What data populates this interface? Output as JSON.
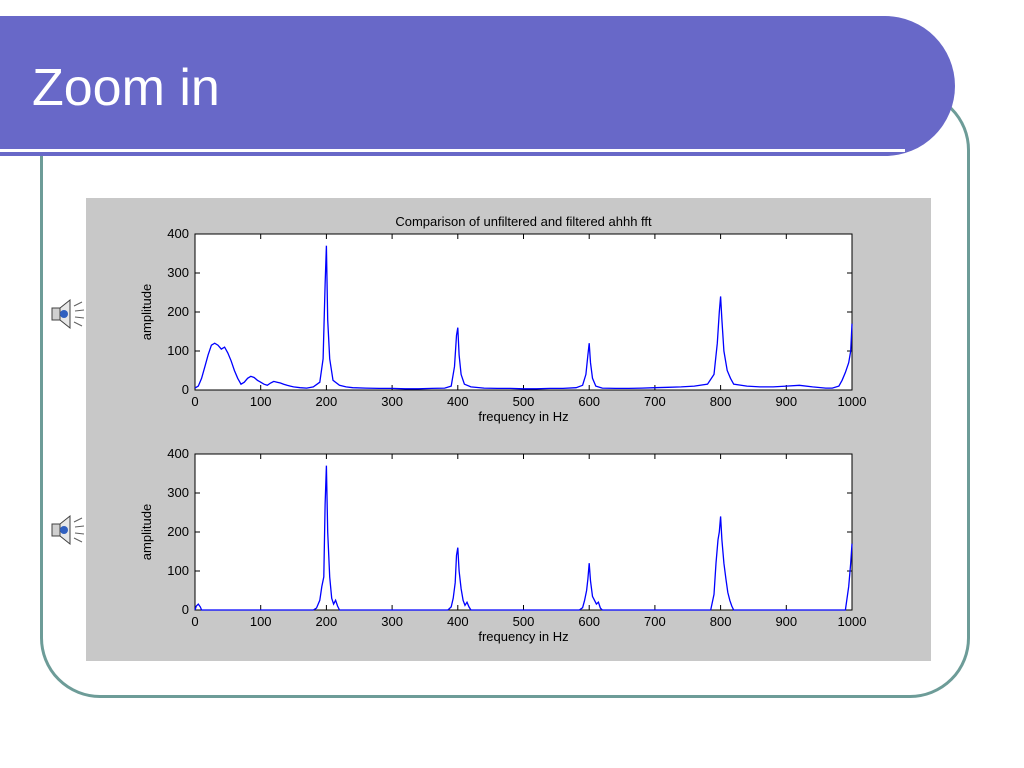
{
  "slide": {
    "title": "Zoom in"
  },
  "icons": {
    "speaker1": "speaker-icon",
    "speaker2": "speaker-icon"
  },
  "colors": {
    "title_bar": "#6868c8",
    "frame": "#6d9c98",
    "series": "#0000ff",
    "figure_bg": "#c8c8c8"
  },
  "chart_data": [
    {
      "type": "line",
      "title": "Comparison of unfiltered and filtered ahhh fft",
      "xlabel": "frequency in Hz",
      "ylabel": "amplitude",
      "xlim": [
        0,
        1000
      ],
      "ylim": [
        0,
        400
      ],
      "xticks": [
        0,
        100,
        200,
        300,
        400,
        500,
        600,
        700,
        800,
        900,
        1000
      ],
      "yticks": [
        0,
        100,
        200,
        300,
        400
      ],
      "grid": false,
      "x": [
        0,
        5,
        10,
        15,
        20,
        25,
        30,
        35,
        40,
        45,
        50,
        55,
        60,
        65,
        70,
        75,
        80,
        85,
        90,
        95,
        100,
        105,
        110,
        115,
        120,
        125,
        130,
        135,
        140,
        145,
        150,
        160,
        170,
        180,
        190,
        195,
        198,
        200,
        202,
        205,
        210,
        220,
        230,
        240,
        260,
        280,
        300,
        320,
        340,
        360,
        380,
        390,
        395,
        398,
        400,
        402,
        405,
        410,
        420,
        440,
        460,
        480,
        500,
        520,
        540,
        560,
        580,
        590,
        595,
        598,
        600,
        602,
        605,
        610,
        620,
        640,
        660,
        680,
        700,
        720,
        740,
        760,
        780,
        790,
        795,
        798,
        800,
        802,
        805,
        810,
        815,
        820,
        840,
        860,
        880,
        900,
        920,
        940,
        960,
        970,
        980,
        985,
        990,
        995,
        998,
        1000
      ],
      "values": [
        5,
        10,
        30,
        60,
        90,
        115,
        120,
        115,
        105,
        110,
        95,
        75,
        50,
        30,
        15,
        20,
        30,
        35,
        32,
        25,
        20,
        15,
        12,
        18,
        22,
        20,
        18,
        15,
        12,
        10,
        8,
        6,
        5,
        8,
        20,
        80,
        270,
        370,
        180,
        80,
        25,
        12,
        8,
        6,
        5,
        4,
        4,
        3,
        3,
        4,
        5,
        10,
        60,
        140,
        160,
        90,
        40,
        15,
        8,
        5,
        4,
        4,
        3,
        3,
        4,
        4,
        6,
        12,
        40,
        90,
        120,
        70,
        30,
        10,
        5,
        4,
        4,
        5,
        6,
        7,
        8,
        10,
        15,
        40,
        120,
        200,
        240,
        180,
        100,
        50,
        30,
        15,
        10,
        8,
        8,
        10,
        12,
        8,
        5,
        5,
        10,
        25,
        45,
        70,
        100,
        170
      ]
    },
    {
      "type": "line",
      "title": "",
      "xlabel": "frequency in Hz",
      "ylabel": "amplitude",
      "xlim": [
        0,
        1000
      ],
      "ylim": [
        0,
        400
      ],
      "xticks": [
        0,
        100,
        200,
        300,
        400,
        500,
        600,
        700,
        800,
        900,
        1000
      ],
      "yticks": [
        0,
        100,
        200,
        300,
        400
      ],
      "grid": false,
      "x": [
        0,
        2,
        5,
        8,
        10,
        180,
        185,
        190,
        193,
        196,
        198,
        200,
        202,
        205,
        208,
        211,
        214,
        217,
        220,
        385,
        390,
        393,
        396,
        398,
        400,
        402,
        405,
        408,
        411,
        414,
        417,
        420,
        585,
        590,
        593,
        596,
        598,
        600,
        602,
        605,
        608,
        611,
        614,
        617,
        620,
        785,
        790,
        793,
        796,
        798,
        800,
        802,
        805,
        808,
        811,
        814,
        817,
        820,
        990,
        995,
        998,
        1000
      ],
      "values": [
        0,
        10,
        15,
        8,
        0,
        0,
        5,
        25,
        60,
        85,
        270,
        370,
        200,
        85,
        30,
        15,
        25,
        10,
        0,
        0,
        8,
        30,
        70,
        140,
        160,
        100,
        55,
        25,
        12,
        20,
        8,
        0,
        0,
        6,
        25,
        50,
        80,
        120,
        75,
        35,
        25,
        15,
        20,
        5,
        0,
        0,
        40,
        120,
        180,
        200,
        240,
        180,
        120,
        80,
        45,
        25,
        10,
        0,
        0,
        60,
        120,
        170
      ]
    }
  ]
}
